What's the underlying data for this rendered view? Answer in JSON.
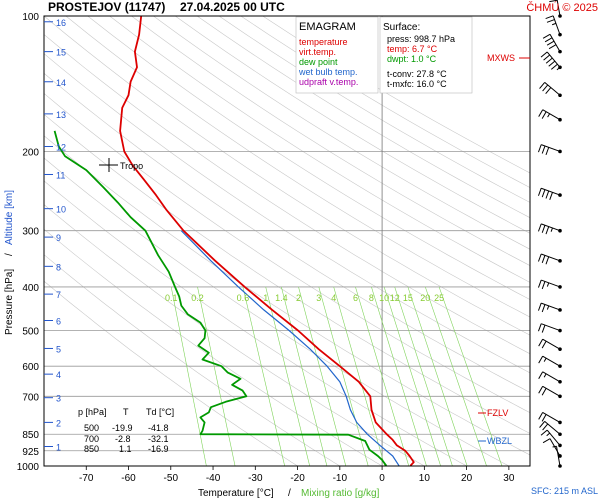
{
  "header": {
    "station": "PROSTEJOV (11747)",
    "datetime": "27.04.2025 00 UTC",
    "credit": "ČHMÚ © 2025"
  },
  "legend": {
    "title": "EMAGRAM",
    "items": [
      {
        "label": "temperature",
        "color": "#dd0000"
      },
      {
        "label": "virt.temp.",
        "color": "#dd0000"
      },
      {
        "label": "dew point",
        "color": "#009900"
      },
      {
        "label": "wet bulb temp.",
        "color": "#2266cc"
      },
      {
        "label": "udpraft v.temp.",
        "color": "#aa00aa"
      }
    ]
  },
  "surface": {
    "title": "Surface:",
    "press": "press: 998.7 hPa",
    "temp": "temp: 6.7 °C",
    "dwpt": "dwpt: 1.0 °C",
    "tconv": "t-conv: 27.8 °C",
    "tmxfc": "t-mxfc: 16.0 °C"
  },
  "table": {
    "headers": [
      "p [hPa]",
      "T",
      "Td [°C]"
    ],
    "rows": [
      [
        "500",
        "-19.9",
        "-41.8"
      ],
      [
        "700",
        "-2.8",
        "-32.1"
      ],
      [
        "850",
        "1.1",
        "-16.9"
      ]
    ]
  },
  "markers": {
    "tropo": "Tropo",
    "mxws": "MXWS",
    "fzlv": "FZLV",
    "wbzl": "WBZL",
    "sfc": "SFC: 215 m ASL"
  },
  "axes": {
    "xlabel_temp": "Temperature [°C]",
    "xlabel_sep": "/",
    "xlabel_mix": "Mixing ratio [g/kg]",
    "ylabel_pressure": "Pressure [hPa]",
    "ylabel_sep": "/",
    "ylabel_alt": "Altitude [km]"
  },
  "chart_data": {
    "type": "line",
    "title": "PROSTEJOV (11747) 27.04.2025 00 UTC",
    "xlabel": "Temperature [°C] / Mixing ratio [g/kg]",
    "ylabel": "Pressure [hPa] / Altitude [km]",
    "xlim": [
      -80,
      35
    ],
    "ylim": [
      1000,
      100
    ],
    "yscale": "log",
    "x_ticks": [
      -70,
      -60,
      -50,
      -40,
      -30,
      -20,
      -10,
      0,
      10,
      20,
      30
    ],
    "p_ticks": [
      100,
      200,
      300,
      400,
      500,
      600,
      700,
      850,
      925,
      1000
    ],
    "alt_ticks": [
      {
        "km": 1,
        "p": 905
      },
      {
        "km": 2,
        "p": 800
      },
      {
        "km": 3,
        "p": 705
      },
      {
        "km": 4,
        "p": 625
      },
      {
        "km": 5,
        "p": 548
      },
      {
        "km": 6,
        "p": 475
      },
      {
        "km": 7,
        "p": 415
      },
      {
        "km": 8,
        "p": 360
      },
      {
        "km": 9,
        "p": 310
      },
      {
        "km": 10,
        "p": 268
      },
      {
        "km": 11,
        "p": 225
      },
      {
        "km": 12,
        "p": 195
      },
      {
        "km": 13,
        "p": 165
      },
      {
        "km": 14,
        "p": 140
      },
      {
        "km": 15,
        "p": 120
      },
      {
        "km": 16,
        "p": 103
      }
    ],
    "mixing_ratio_labels": [
      "0.1",
      "0.2",
      "0.6",
      "1",
      "1.4",
      "2",
      "3",
      "4",
      "6",
      "8",
      "10",
      "12",
      "15",
      "20",
      "25"
    ],
    "mixing_ratio_values": [
      0.1,
      0.2,
      0.6,
      1,
      1.4,
      2,
      3,
      4,
      6,
      8,
      10,
      12,
      15,
      20,
      25
    ],
    "series": [
      {
        "name": "temperature",
        "points": [
          [
            998.7,
            6.7
          ],
          [
            980,
            7.5
          ],
          [
            950,
            6.5
          ],
          [
            925,
            5.5
          ],
          [
            900,
            3.5
          ],
          [
            875,
            2.5
          ],
          [
            850,
            1.1
          ],
          [
            800,
            -1.5
          ],
          [
            750,
            -2.5
          ],
          [
            700,
            -2.8
          ],
          [
            650,
            -5.5
          ],
          [
            600,
            -10.0
          ],
          [
            550,
            -15.0
          ],
          [
            500,
            -19.9
          ],
          [
            450,
            -26.0
          ],
          [
            400,
            -32.5
          ],
          [
            350,
            -39.5
          ],
          [
            300,
            -47.0
          ],
          [
            270,
            -51.0
          ],
          [
            250,
            -53.5
          ],
          [
            230,
            -56.5
          ],
          [
            215,
            -59.0
          ],
          [
            200,
            -61.0
          ],
          [
            180,
            -62.0
          ],
          [
            160,
            -61.5
          ],
          [
            150,
            -60.0
          ],
          [
            140,
            -59.5
          ],
          [
            130,
            -58.0
          ],
          [
            120,
            -58.5
          ],
          [
            110,
            -57.5
          ],
          [
            100,
            -57.0
          ]
        ]
      },
      {
        "name": "wet bulb temp.",
        "points": [
          [
            998.7,
            4.0
          ],
          [
            950,
            2.5
          ],
          [
            900,
            -0.5
          ],
          [
            850,
            -3.5
          ],
          [
            800,
            -6.0
          ],
          [
            750,
            -7.5
          ],
          [
            700,
            -8.5
          ],
          [
            650,
            -10.0
          ],
          [
            600,
            -13.0
          ],
          [
            550,
            -17.0
          ],
          [
            500,
            -22.0
          ],
          [
            450,
            -28.0
          ],
          [
            400,
            -34.0
          ],
          [
            350,
            -40.5
          ],
          [
            300,
            -47.5
          ]
        ]
      },
      {
        "name": "dew point",
        "points": [
          [
            998.7,
            1.0
          ],
          [
            970,
            0.0
          ],
          [
            950,
            -1.0
          ],
          [
            920,
            -3.0
          ],
          [
            880,
            -4.0
          ],
          [
            852,
            -8.0
          ],
          [
            850,
            -43.0
          ],
          [
            835,
            -42.5
          ],
          [
            800,
            -42.0
          ],
          [
            780,
            -43.0
          ],
          [
            760,
            -41.0
          ],
          [
            740,
            -40.5
          ],
          [
            720,
            -37.0
          ],
          [
            700,
            -32.1
          ],
          [
            680,
            -33.0
          ],
          [
            660,
            -35.5
          ],
          [
            640,
            -33.5
          ],
          [
            620,
            -36.5
          ],
          [
            600,
            -38.0
          ],
          [
            580,
            -42.5
          ],
          [
            560,
            -41.0
          ],
          [
            540,
            -43.5
          ],
          [
            520,
            -42.0
          ],
          [
            500,
            -41.8
          ],
          [
            480,
            -43.0
          ],
          [
            460,
            -46.0
          ],
          [
            440,
            -47.5
          ],
          [
            420,
            -48.0
          ],
          [
            400,
            -49.0
          ],
          [
            370,
            -50.5
          ],
          [
            340,
            -53.0
          ],
          [
            300,
            -56.0
          ],
          [
            280,
            -59.5
          ],
          [
            260,
            -62.5
          ],
          [
            240,
            -66.0
          ],
          [
            220,
            -70.0
          ],
          [
            205,
            -75.0
          ],
          [
            195,
            -76.5
          ],
          [
            180,
            -77.5
          ]
        ]
      }
    ],
    "wind_profile": [
      {
        "p": 1000,
        "dir": 350,
        "kt": 5
      },
      {
        "p": 950,
        "dir": 330,
        "kt": 10
      },
      {
        "p": 900,
        "dir": 320,
        "kt": 15
      },
      {
        "p": 850,
        "dir": 310,
        "kt": 20
      },
      {
        "p": 800,
        "dir": 300,
        "kt": 20
      },
      {
        "p": 700,
        "dir": 300,
        "kt": 20
      },
      {
        "p": 650,
        "dir": 300,
        "kt": 15
      },
      {
        "p": 600,
        "dir": 300,
        "kt": 15
      },
      {
        "p": 550,
        "dir": 300,
        "kt": 20
      },
      {
        "p": 500,
        "dir": 290,
        "kt": 20
      },
      {
        "p": 450,
        "dir": 290,
        "kt": 25
      },
      {
        "p": 400,
        "dir": 290,
        "kt": 25
      },
      {
        "p": 350,
        "dir": 290,
        "kt": 30
      },
      {
        "p": 300,
        "dir": 290,
        "kt": 35
      },
      {
        "p": 250,
        "dir": 290,
        "kt": 40
      },
      {
        "p": 200,
        "dir": 290,
        "kt": 30
      },
      {
        "p": 170,
        "dir": 300,
        "kt": 25
      },
      {
        "p": 150,
        "dir": 310,
        "kt": 30
      },
      {
        "p": 130,
        "dir": 320,
        "kt": 55
      },
      {
        "p": 120,
        "dir": 330,
        "kt": 40
      },
      {
        "p": 110,
        "dir": 340,
        "kt": 25
      },
      {
        "p": 100,
        "dir": 350,
        "kt": 20
      }
    ]
  }
}
